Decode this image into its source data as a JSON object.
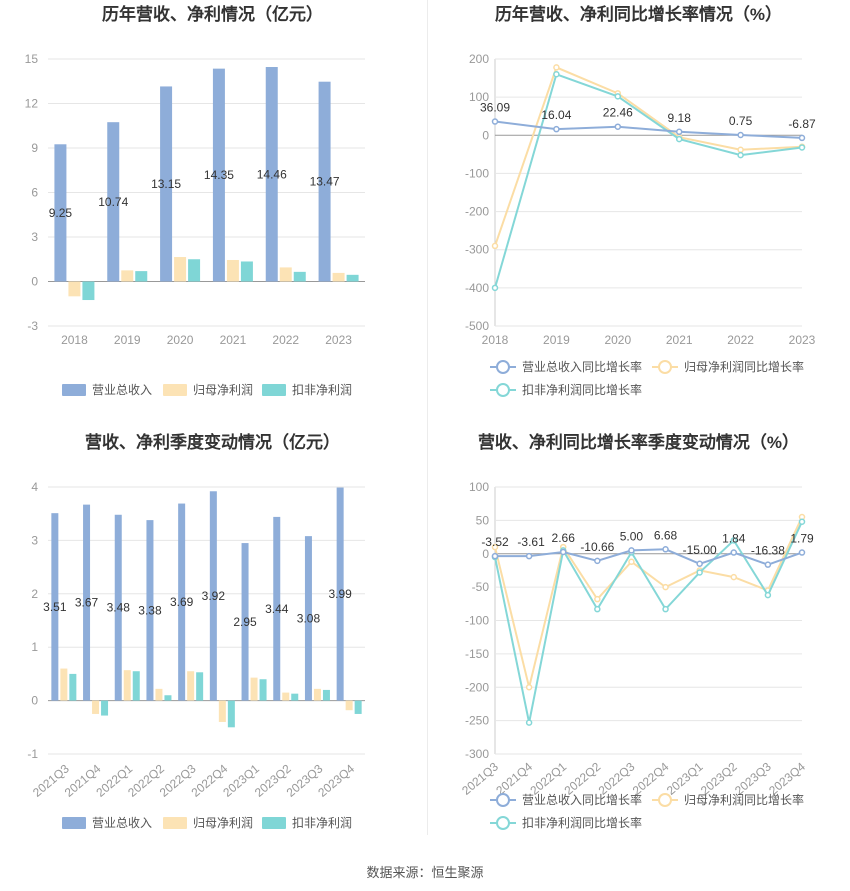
{
  "colors": {
    "revenue": "#8eadd9",
    "parent_profit": "#fce3b5",
    "deducted_profit": "#7fd6d6",
    "line_revenue": "#8eadd9",
    "line_parent": "#fbdda5",
    "line_deducted": "#84d7d7",
    "grid": "#e6e6e6",
    "axis_text": "#999999",
    "label_text": "#333333"
  },
  "legend": {
    "bars": [
      "营业总收入",
      "归母净利润",
      "扣非净利润"
    ],
    "lines": [
      "营业总收入同比增长率",
      "归母净利润同比增长率",
      "扣非净利润同比增长率"
    ]
  },
  "footer": {
    "source": "数据来源：恒生聚源"
  },
  "chart_data": [
    {
      "id": "annual_amounts",
      "type": "bar",
      "title": "历年营收、净利情况（亿元）",
      "categories": [
        "2018",
        "2019",
        "2020",
        "2021",
        "2022",
        "2023"
      ],
      "ylim": [
        -3,
        15
      ],
      "yticks": [
        -3,
        0,
        3,
        6,
        9,
        12,
        15
      ],
      "grid": true,
      "legend_position": "bottom",
      "series": [
        {
          "name": "营业总收入",
          "values": [
            9.25,
            10.74,
            13.15,
            14.35,
            14.46,
            13.47
          ],
          "labels": [
            "9.25",
            "10.74",
            "13.15",
            "14.35",
            "14.46",
            "13.47"
          ]
        },
        {
          "name": "归母净利润",
          "values": [
            -1.0,
            0.75,
            1.65,
            1.45,
            0.95,
            0.58
          ]
        },
        {
          "name": "扣非净利润",
          "values": [
            -1.25,
            0.7,
            1.5,
            1.35,
            0.65,
            0.45
          ]
        }
      ]
    },
    {
      "id": "annual_growth",
      "type": "line",
      "title": "历年营收、净利同比增长率情况（%）",
      "categories": [
        "2018",
        "2019",
        "2020",
        "2021",
        "2022",
        "2023"
      ],
      "ylim": [
        -500,
        200
      ],
      "yticks": [
        -500,
        -400,
        -300,
        -200,
        -100,
        0,
        100,
        200
      ],
      "grid": true,
      "legend_position": "bottom",
      "series": [
        {
          "name": "营业总收入同比增长率",
          "values": [
            36.09,
            16.04,
            22.46,
            9.18,
            0.75,
            -6.87
          ],
          "labels": [
            "36.09",
            "16.04",
            "22.46",
            "9.18",
            "0.75",
            "-6.87"
          ]
        },
        {
          "name": "归母净利润同比增长率",
          "values": [
            -290,
            178,
            110,
            -5,
            -38,
            -30
          ]
        },
        {
          "name": "扣非净利润同比增长率",
          "values": [
            -400,
            160,
            102,
            -10,
            -52,
            -32
          ]
        }
      ]
    },
    {
      "id": "quarterly_amounts",
      "type": "bar",
      "title": "营收、净利季度变动情况（亿元）",
      "categories": [
        "2021Q3",
        "2021Q4",
        "2022Q1",
        "2022Q2",
        "2022Q3",
        "2022Q4",
        "2023Q1",
        "2023Q2",
        "2023Q3",
        "2023Q4"
      ],
      "ylim": [
        -1,
        4
      ],
      "yticks": [
        -1,
        0,
        1,
        2,
        3,
        4
      ],
      "grid": true,
      "legend_position": "bottom",
      "series": [
        {
          "name": "营业总收入",
          "values": [
            3.51,
            3.67,
            3.48,
            3.38,
            3.69,
            3.92,
            2.95,
            3.44,
            3.08,
            3.99
          ],
          "labels": [
            "3.51",
            "3.67",
            "3.48",
            "3.38",
            "3.69",
            "3.92",
            "2.95",
            "3.44",
            "3.08",
            "3.99"
          ]
        },
        {
          "name": "归母净利润",
          "values": [
            0.6,
            -0.25,
            0.57,
            0.22,
            0.55,
            -0.4,
            0.43,
            0.15,
            0.22,
            -0.18
          ]
        },
        {
          "name": "扣非净利润",
          "values": [
            0.5,
            -0.28,
            0.55,
            0.1,
            0.53,
            -0.5,
            0.4,
            0.13,
            0.2,
            -0.25
          ]
        }
      ]
    },
    {
      "id": "quarterly_growth",
      "type": "line",
      "title": "营收、净利同比增长率季度变动情况（%）",
      "categories": [
        "2021Q3",
        "2021Q4",
        "2022Q1",
        "2022Q2",
        "2022Q3",
        "2022Q4",
        "2023Q1",
        "2023Q2",
        "2023Q3",
        "2023Q4"
      ],
      "ylim": [
        -300,
        100
      ],
      "yticks": [
        -300,
        -250,
        -200,
        -150,
        -100,
        -50,
        0,
        50,
        100
      ],
      "grid": true,
      "legend_position": "bottom",
      "series": [
        {
          "name": "营业总收入同比增长率",
          "values": [
            -3.52,
            -3.61,
            2.66,
            -10.66,
            5.0,
            6.68,
            -15.0,
            1.84,
            -16.38,
            1.79
          ],
          "labels": [
            "-3.52",
            "-3.61",
            "2.66",
            "-10.66",
            "5.00",
            "6.68",
            "-15.00",
            "1.84",
            "-16.38",
            "1.79"
          ]
        },
        {
          "name": "归母净利润同比增长率",
          "values": [
            10,
            -200,
            10,
            -68,
            -12,
            -50,
            -25,
            -35,
            -55,
            55
          ]
        },
        {
          "name": "扣非净利润同比增长率",
          "values": [
            -5,
            -253,
            5,
            -83,
            2,
            -83,
            -28,
            20,
            -62,
            48
          ]
        }
      ]
    }
  ]
}
